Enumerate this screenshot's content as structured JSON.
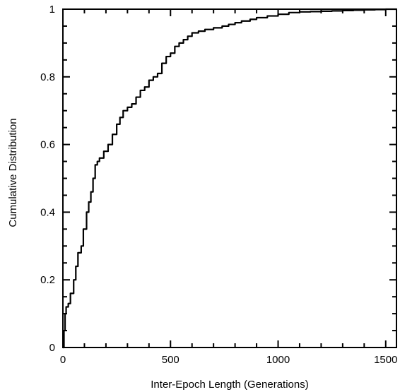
{
  "chart_data": {
    "type": "line",
    "title": "",
    "xlabel": "Inter-Epoch Length (Generations)",
    "ylabel": "Cumulative Distribution",
    "xlim": [
      0,
      1550
    ],
    "ylim": [
      0,
      1
    ],
    "x_ticks": [
      0,
      500,
      1000,
      1500
    ],
    "x_tick_labels": [
      "0",
      "500",
      "1000",
      "1500"
    ],
    "y_ticks": [
      0,
      0.2,
      0.4,
      0.6,
      0.8,
      1
    ],
    "y_tick_labels": [
      "0",
      "0.2",
      "0.4",
      "0.6",
      "0.8",
      "1"
    ],
    "grid": false,
    "line_color": "#000000",
    "series": [
      {
        "x": [
          0,
          5,
          10,
          15,
          25,
          35,
          50,
          60,
          70,
          85,
          95,
          110,
          120,
          130,
          140,
          150,
          160,
          170,
          190,
          210,
          230,
          250,
          265,
          280,
          300,
          320,
          340,
          360,
          380,
          400,
          420,
          440,
          460,
          480,
          500,
          520,
          540,
          560,
          580,
          600,
          630,
          660,
          700,
          740,
          770,
          800,
          830,
          870,
          900,
          950,
          1000,
          1050,
          1100,
          1150,
          1200,
          1250,
          1300,
          1350,
          1400,
          1450,
          1500,
          1550
        ],
        "y": [
          0,
          0.05,
          0.1,
          0.12,
          0.13,
          0.16,
          0.2,
          0.24,
          0.28,
          0.3,
          0.35,
          0.4,
          0.43,
          0.46,
          0.5,
          0.54,
          0.55,
          0.56,
          0.58,
          0.6,
          0.63,
          0.66,
          0.68,
          0.7,
          0.71,
          0.72,
          0.74,
          0.76,
          0.77,
          0.79,
          0.8,
          0.81,
          0.84,
          0.86,
          0.87,
          0.89,
          0.9,
          0.91,
          0.92,
          0.93,
          0.935,
          0.94,
          0.945,
          0.95,
          0.955,
          0.96,
          0.965,
          0.97,
          0.975,
          0.98,
          0.985,
          0.99,
          0.992,
          0.993,
          0.994,
          0.995,
          0.996,
          0.997,
          0.998,
          0.999,
          1.0,
          1.0
        ]
      }
    ]
  }
}
